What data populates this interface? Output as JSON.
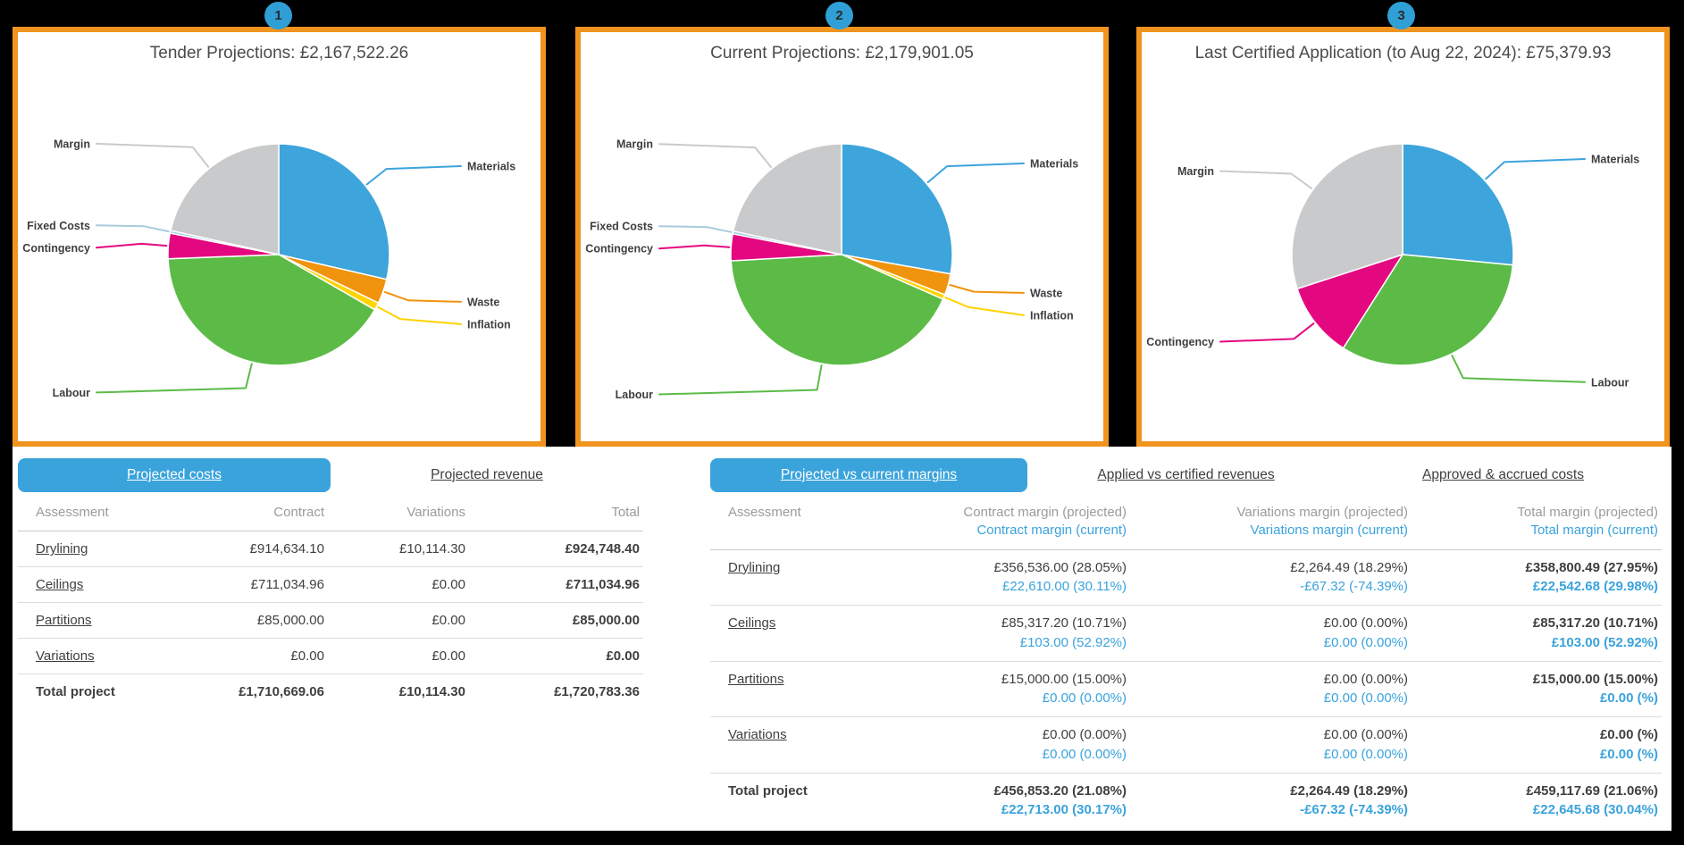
{
  "badges": [
    {
      "label": "1"
    },
    {
      "label": "2"
    },
    {
      "label": "3"
    }
  ],
  "colors": {
    "panel_border": "#F0941F",
    "accent_blue": "#3AA3DC",
    "badge_blue": "#2F9FD6",
    "text_dark": "#3f3f3f",
    "text_gray": "#9b9b9b",
    "pie_materials": "#3DA4DC",
    "pie_waste": "#F0930D",
    "pie_inflation": "#FFD300",
    "pie_labour": "#5CBB46",
    "pie_contingency": "#E40880",
    "pie_fixed_costs": "#A9CBDD",
    "pie_margin": "#C9CACB"
  },
  "chart_data": [
    {
      "type": "pie",
      "title": "Tender Projections: £2,167,522.26",
      "total": "£2,167,522.26",
      "unit": "percent (estimated from arc angles)",
      "labels": [
        "Materials",
        "Waste",
        "Inflation",
        "Labour",
        "Contingency",
        "Fixed Costs",
        "Margin"
      ],
      "values": [
        28.6,
        3.6,
        1.1,
        41.1,
        3.7,
        0.4,
        21.5
      ],
      "colors": [
        "#3DA4DC",
        "#F0930D",
        "#FFD300",
        "#5CBB46",
        "#E40880",
        "#A9CBDD",
        "#C9CACB"
      ],
      "legend_position": "callouts"
    },
    {
      "type": "pie",
      "title": "Current Projections: £2,179,901.05",
      "total": "£2,179,901.05",
      "unit": "percent (estimated from arc angles)",
      "labels": [
        "Materials",
        "Waste",
        "Inflation",
        "Labour",
        "Contingency",
        "Fixed Costs",
        "Margin"
      ],
      "values": [
        27.8,
        3.1,
        0.7,
        42.5,
        3.9,
        0.4,
        21.6
      ],
      "colors": [
        "#3DA4DC",
        "#F0930D",
        "#FFD300",
        "#5CBB46",
        "#E40880",
        "#A9CBDD",
        "#C9CACB"
      ],
      "legend_position": "callouts"
    },
    {
      "type": "pie",
      "title": "Last Certified Application (to Aug 22, 2024): £75,379.93",
      "total": "£75,379.93",
      "unit": "percent (estimated from arc angles)",
      "labels": [
        "Materials",
        "Labour",
        "Contingency",
        "Margin"
      ],
      "values": [
        26.5,
        32.5,
        11.0,
        30.0
      ],
      "colors": [
        "#3DA4DC",
        "#5CBB46",
        "#E40880",
        "#C9CACB"
      ],
      "legend_position": "callouts"
    }
  ],
  "left_table": {
    "tabs": [
      {
        "label": "Projected costs",
        "active": true
      },
      {
        "label": "Projected revenue",
        "active": false
      }
    ],
    "headers": [
      "Assessment",
      "Contract",
      "Variations",
      "Total"
    ],
    "rows": [
      {
        "assessment": "Drylining",
        "contract": "£914,634.10",
        "variations": "£10,114.30",
        "total": "£924,748.40",
        "is_total": false
      },
      {
        "assessment": "Ceilings",
        "contract": "£711,034.96",
        "variations": "£0.00",
        "total": "£711,034.96",
        "is_total": false
      },
      {
        "assessment": "Partitions",
        "contract": "£85,000.00",
        "variations": "£0.00",
        "total": "£85,000.00",
        "is_total": false
      },
      {
        "assessment": "Variations",
        "contract": "£0.00",
        "variations": "£0.00",
        "total": "£0.00",
        "is_total": false
      },
      {
        "assessment": "Total project",
        "contract": "£1,710,669.06",
        "variations": "£10,114.30",
        "total": "£1,720,783.36",
        "is_total": true
      }
    ]
  },
  "right_table": {
    "tabs": [
      {
        "label": "Projected vs current margins",
        "active": true
      },
      {
        "label": "Applied vs certified revenues",
        "active": false
      },
      {
        "label": "Approved & accrued costs",
        "active": false
      }
    ],
    "headers": {
      "assessment": "Assessment",
      "contract_projected": "Contract margin (projected)",
      "contract_current": "Contract margin (current)",
      "variations_projected": "Variations margin (projected)",
      "variations_current": "Variations margin (current)",
      "total_projected": "Total margin (projected)",
      "total_current": "Total margin (current)"
    },
    "rows": [
      {
        "assessment": "Drylining",
        "is_total": false,
        "contract": [
          "£356,536.00 (28.05%)",
          "£22,610.00 (30.11%)"
        ],
        "variations": [
          "£2,264.49 (18.29%)",
          "-£67.32 (-74.39%)"
        ],
        "total": [
          "£358,800.49 (27.95%)",
          "£22,542.68 (29.98%)"
        ]
      },
      {
        "assessment": "Ceilings",
        "is_total": false,
        "contract": [
          "£85,317.20 (10.71%)",
          "£103.00 (52.92%)"
        ],
        "variations": [
          "£0.00 (0.00%)",
          "£0.00 (0.00%)"
        ],
        "total": [
          "£85,317.20 (10.71%)",
          "£103.00 (52.92%)"
        ]
      },
      {
        "assessment": "Partitions",
        "is_total": false,
        "contract": [
          "£15,000.00 (15.00%)",
          "£0.00 (0.00%)"
        ],
        "variations": [
          "£0.00 (0.00%)",
          "£0.00 (0.00%)"
        ],
        "total": [
          "£15,000.00 (15.00%)",
          "£0.00 (%)"
        ]
      },
      {
        "assessment": "Variations",
        "is_total": false,
        "contract": [
          "£0.00 (0.00%)",
          "£0.00 (0.00%)"
        ],
        "variations": [
          "£0.00 (0.00%)",
          "£0.00 (0.00%)"
        ],
        "total": [
          "£0.00 (%)",
          "£0.00 (%)"
        ]
      },
      {
        "assessment": "Total project",
        "is_total": true,
        "contract": [
          "£456,853.20 (21.08%)",
          "£22,713.00 (30.17%)"
        ],
        "variations": [
          "£2,264.49 (18.29%)",
          "-£67.32 (-74.39%)"
        ],
        "total": [
          "£459,117.69 (21.06%)",
          "£22,645.68 (30.04%)"
        ]
      }
    ]
  }
}
